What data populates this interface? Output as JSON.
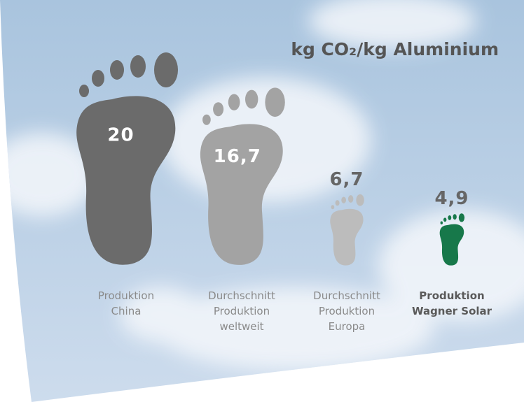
{
  "chart_data": {
    "type": "pictogram",
    "title": "kg CO₂/kg Aluminium",
    "categories": [
      "Produktion\nChina",
      "Durchschnitt\nProduktion\nweltweit",
      "Durchschnitt\nProduktion\nEuropa",
      "Produktion\nWagner Solar"
    ],
    "values": [
      20,
      16.7,
      6.7,
      4.9
    ],
    "value_labels": [
      "20",
      "16,7",
      "6,7",
      "4,9"
    ],
    "colors": [
      "#6b6b6b",
      "#a3a3a3",
      "#bcbcbc",
      "#17784a"
    ],
    "highlight_index": 3
  }
}
